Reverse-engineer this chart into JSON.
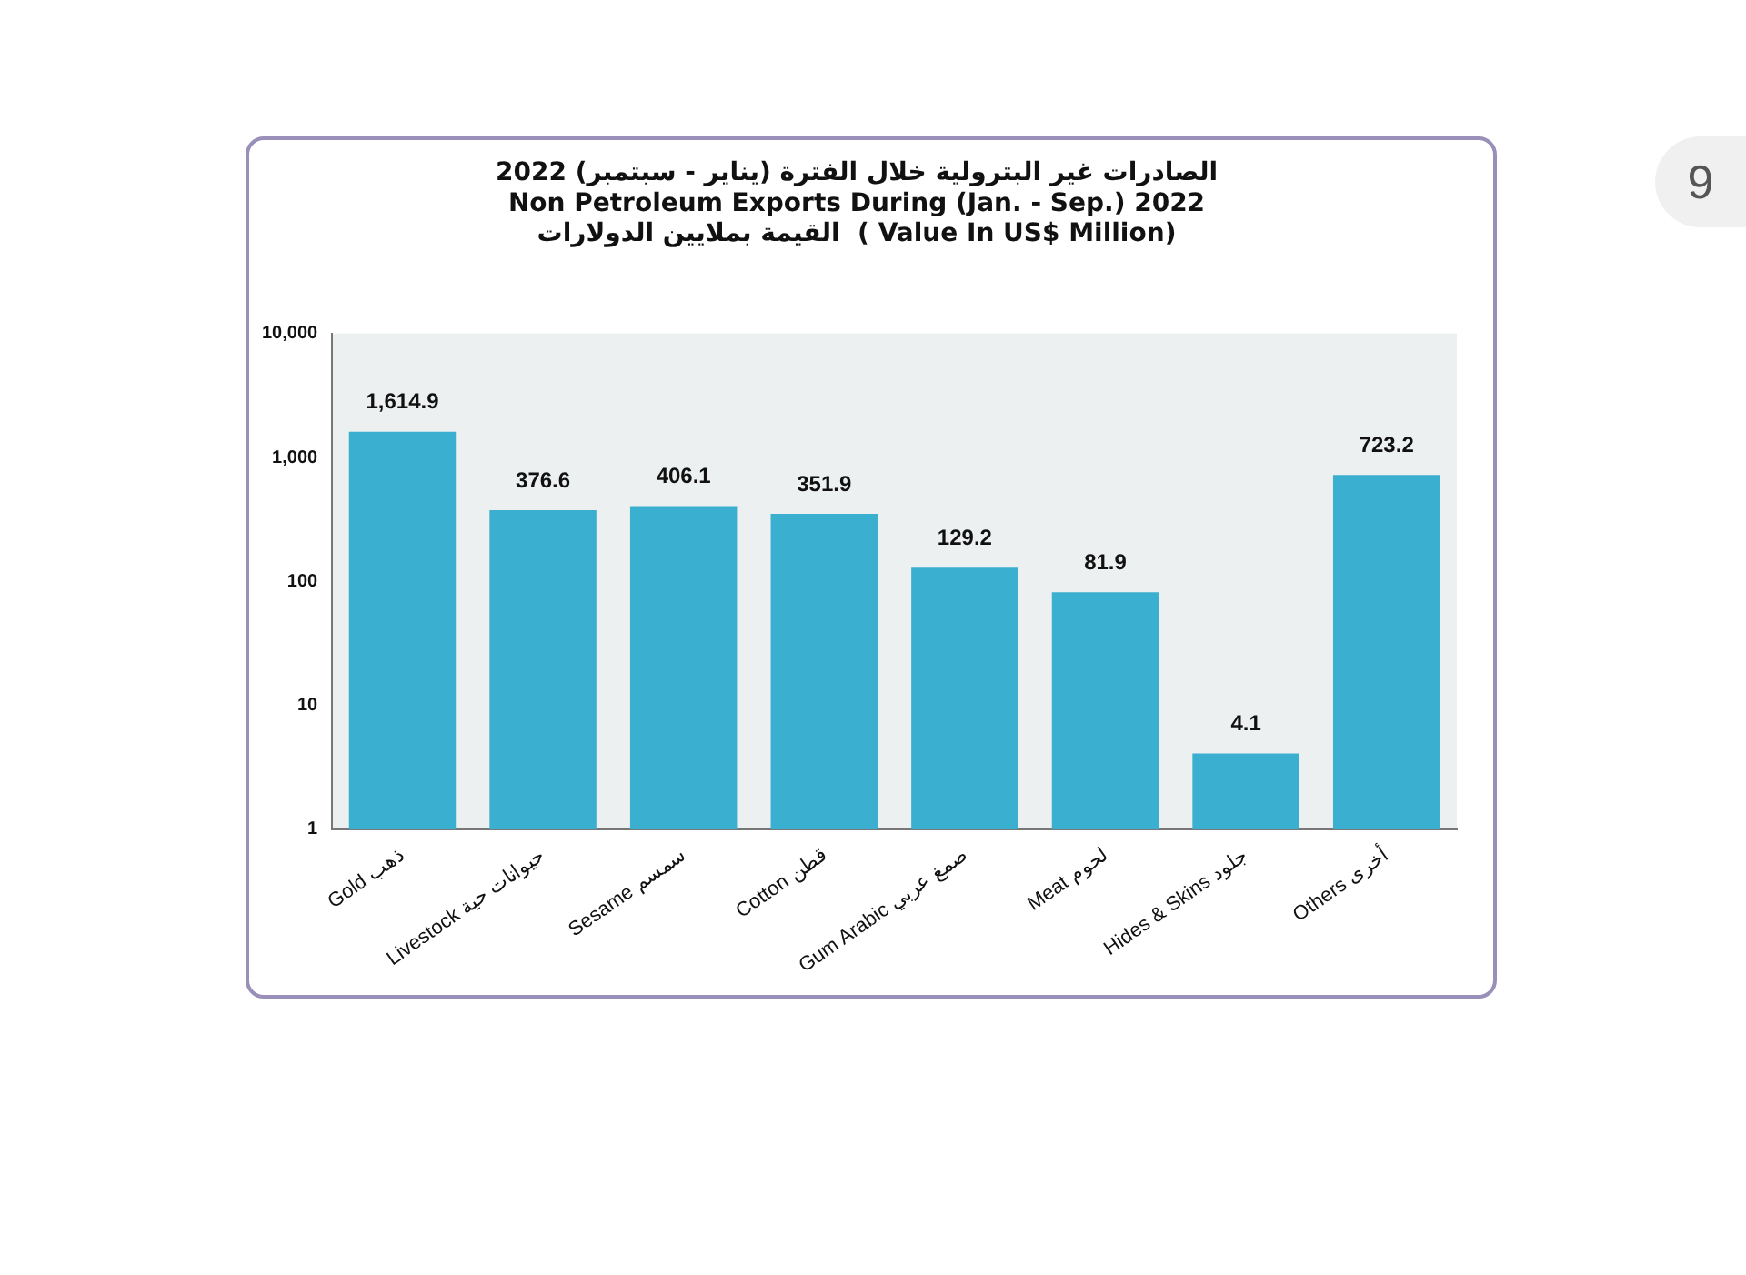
{
  "chart_data": {
    "type": "bar",
    "title": "الصادرات غير البترولية خلال الفترة (يناير - سبتمبر) 2022\nNon Petroleum Exports During (Jan. - Sep.) 2022\nالقيمة بملايين الدولارات  ( Value In US$ Million)",
    "categories": [
      "Gold ذهب",
      "Livestock حيوانات حية",
      "Sesame سمسم",
      "Cotton قطن",
      "Gum Arabic صمغ عربي",
      "Meat لحوم",
      "Hides & Skins جلود",
      "Others أخرى"
    ],
    "values": [
      1614.9,
      376.6,
      406.1,
      351.9,
      129.2,
      81.9,
      4.1,
      723.2
    ],
    "value_labels": [
      "1,614.9",
      "376.6",
      "406.1",
      "351.9",
      "129.2",
      "81.9",
      "4.1",
      "723.2"
    ],
    "color": "#3aafcf",
    "log": true,
    "ylim": [
      1,
      10000
    ],
    "yticks": [
      1,
      10,
      100,
      {
        "value": 1000,
        "label": "1,000"
      },
      {
        "value": 10000,
        "label": "10,000"
      }
    ],
    "grid": false,
    "legend": false,
    "annotations": [
      "9"
    ]
  }
}
